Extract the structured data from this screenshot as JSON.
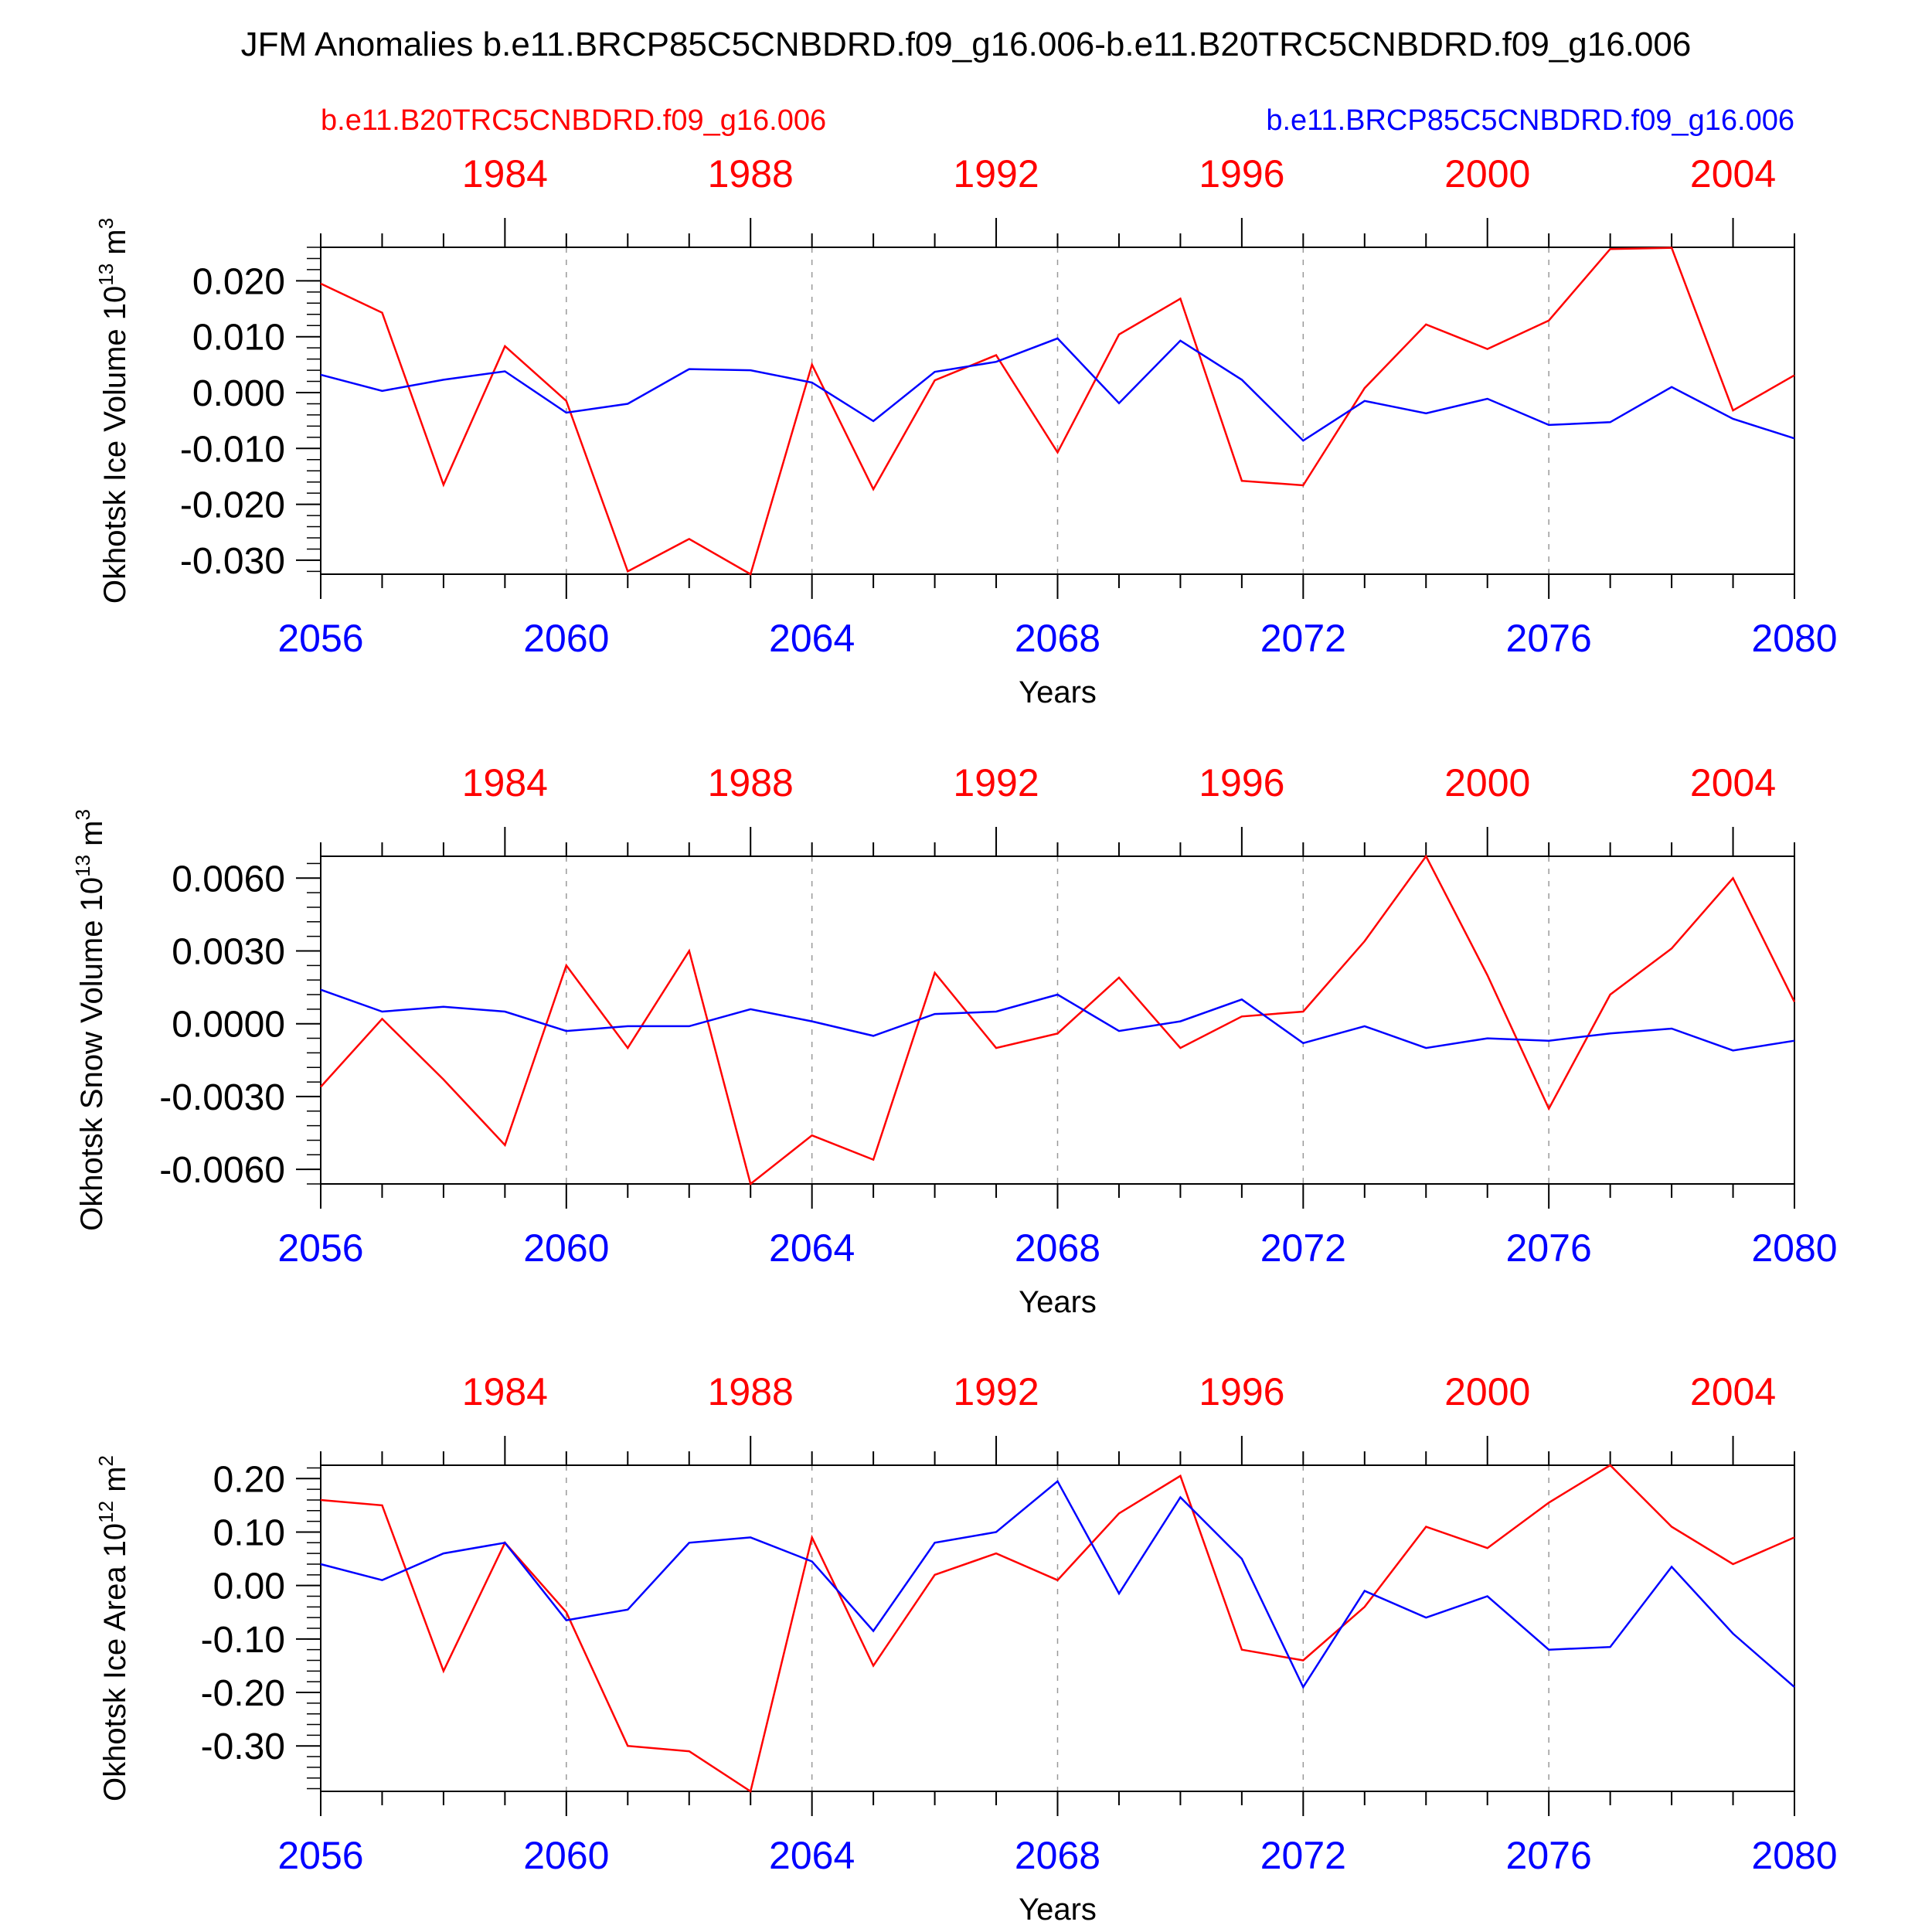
{
  "title": "JFM Anomalies b.e11.BRCP85C5CNBDRD.f09_g16.006-b.e11.B20TRC5CNBDRD.f09_g16.006",
  "legend": {
    "red_label": "b.e11.B20TRC5CNBDRD.f09_g16.006",
    "blue_label": "b.e11.BRCP85C5CNBDRD.f09_g16.006"
  },
  "colors": {
    "red": "#ff0000",
    "blue": "#0000ff",
    "axis": "#000000",
    "grid": "#999999"
  },
  "chart_data": [
    {
      "type": "line",
      "title": "",
      "ylabel_text": "Okhotsk Ice Volume 10",
      "ylabel_exp": "13",
      "ylabel_unit": "m",
      "ylabel_unit_exp": "3",
      "xlabel": "Years",
      "xlim": [
        2056,
        2080
      ],
      "ylim": [
        -0.0325,
        0.026
      ],
      "yticks": [
        0.02,
        0.01,
        0.0,
        -0.01,
        -0.02,
        -0.03
      ],
      "ytick_labels": [
        "0.020",
        "0.010",
        "0.000",
        "-0.010",
        "-0.020",
        "-0.030"
      ],
      "yminor_step": 0.002,
      "bottom_ticks": [
        2056,
        2060,
        2064,
        2068,
        2072,
        2076,
        2080
      ],
      "bottom_labels": [
        "2056",
        "2060",
        "2064",
        "2068",
        "2072",
        "2076",
        "2080"
      ],
      "top_tick_positions": [
        2059,
        2063,
        2067,
        2071,
        2075,
        2079
      ],
      "top_labels": [
        "1984",
        "1988",
        "1992",
        "1996",
        "2000",
        "2004"
      ],
      "x": [
        2056,
        2057,
        2058,
        2059,
        2060,
        2061,
        2062,
        2063,
        2064,
        2065,
        2066,
        2067,
        2068,
        2069,
        2070,
        2071,
        2072,
        2073,
        2074,
        2075,
        2076,
        2077,
        2078,
        2079,
        2080
      ],
      "series": [
        {
          "name": "b.e11.B20TRC5CNBDRD.f09_g16.006",
          "color": "#ff0000",
          "values": [
            0.0195,
            0.0143,
            -0.0165,
            0.0083,
            -0.0015,
            -0.032,
            -0.0262,
            -0.0325,
            0.005,
            -0.0173,
            0.0022,
            0.0067,
            -0.0107,
            0.0104,
            0.0168,
            -0.0158,
            -0.0166,
            0.0008,
            0.0122,
            0.0078,
            0.0129,
            0.0257,
            0.0259,
            -0.0032,
            0.0031
          ]
        },
        {
          "name": "b.e11.BRCP85C5CNBDRD.f09_g16.006",
          "color": "#0000ff",
          "values": [
            0.0032,
            0.0003,
            0.0023,
            0.0038,
            -0.0036,
            -0.002,
            0.0042,
            0.004,
            0.0018,
            -0.0051,
            0.0037,
            0.0055,
            0.0097,
            -0.0019,
            0.0093,
            0.0023,
            -0.0086,
            -0.0015,
            -0.0037,
            -0.0011,
            -0.0058,
            -0.0053,
            0.001,
            -0.0047,
            -0.0082
          ]
        }
      ]
    },
    {
      "type": "line",
      "title": "",
      "ylabel_text": "Okhotsk Snow Volume 10",
      "ylabel_exp": "13",
      "ylabel_unit": "m",
      "ylabel_unit_exp": "3",
      "xlabel": "Years",
      "xlim": [
        2056,
        2080
      ],
      "ylim": [
        -0.0066,
        0.0069
      ],
      "yticks": [
        0.006,
        0.003,
        0.0,
        -0.003,
        -0.006
      ],
      "ytick_labels": [
        "0.0060",
        "0.0030",
        "0.0000",
        "-0.0030",
        "-0.0060"
      ],
      "yminor_step": 0.0006,
      "bottom_ticks": [
        2056,
        2060,
        2064,
        2068,
        2072,
        2076,
        2080
      ],
      "bottom_labels": [
        "2056",
        "2060",
        "2064",
        "2068",
        "2072",
        "2076",
        "2080"
      ],
      "top_tick_positions": [
        2059,
        2063,
        2067,
        2071,
        2075,
        2079
      ],
      "top_labels": [
        "1984",
        "1988",
        "1992",
        "1996",
        "2000",
        "2004"
      ],
      "x": [
        2056,
        2057,
        2058,
        2059,
        2060,
        2061,
        2062,
        2063,
        2064,
        2065,
        2066,
        2067,
        2068,
        2069,
        2070,
        2071,
        2072,
        2073,
        2074,
        2075,
        2076,
        2077,
        2078,
        2079,
        2080
      ],
      "series": [
        {
          "name": "b.e11.B20TRC5CNBDRD.f09_g16.006",
          "color": "#ff0000",
          "values": [
            -0.0026,
            0.0002,
            -0.0023,
            -0.005,
            0.0024,
            -0.001,
            0.003,
            -0.0066,
            -0.0046,
            -0.0056,
            0.0021,
            -0.001,
            -0.0004,
            0.0019,
            -0.001,
            0.0003,
            0.0005,
            0.0034,
            0.0069,
            0.002,
            -0.0035,
            0.0012,
            0.0031,
            0.006,
            0.0009
          ]
        },
        {
          "name": "b.e11.BRCP85C5CNBDRD.f09_g16.006",
          "color": "#0000ff",
          "values": [
            0.0014,
            0.0005,
            0.0007,
            0.0005,
            -0.0003,
            -0.0001,
            -0.0001,
            0.0006,
            0.0001,
            -0.0005,
            0.0004,
            0.0005,
            0.0012,
            -0.0003,
            0.0001,
            0.001,
            -0.0008,
            -0.0001,
            -0.001,
            -0.0006,
            -0.0007,
            -0.0004,
            -0.0002,
            -0.0011,
            -0.0007
          ]
        }
      ]
    },
    {
      "type": "line",
      "title": "",
      "ylabel_text": "Okhotsk Ice Area 10",
      "ylabel_exp": "12",
      "ylabel_unit": "m",
      "ylabel_unit_exp": "2",
      "xlabel": "Years",
      "xlim": [
        2056,
        2080
      ],
      "ylim": [
        -0.385,
        0.225
      ],
      "yticks": [
        0.2,
        0.1,
        0.0,
        -0.1,
        -0.2,
        -0.3
      ],
      "ytick_labels": [
        "0.20",
        "0.10",
        "0.00",
        "-0.10",
        "-0.20",
        "-0.30"
      ],
      "yminor_step": 0.02,
      "bottom_ticks": [
        2056,
        2060,
        2064,
        2068,
        2072,
        2076,
        2080
      ],
      "bottom_labels": [
        "2056",
        "2060",
        "2064",
        "2068",
        "2072",
        "2076",
        "2080"
      ],
      "top_tick_positions": [
        2059,
        2063,
        2067,
        2071,
        2075,
        2079
      ],
      "top_labels": [
        "1984",
        "1988",
        "1992",
        "1996",
        "2000",
        "2004"
      ],
      "x": [
        2056,
        2057,
        2058,
        2059,
        2060,
        2061,
        2062,
        2063,
        2064,
        2065,
        2066,
        2067,
        2068,
        2069,
        2070,
        2071,
        2072,
        2073,
        2074,
        2075,
        2076,
        2077,
        2078,
        2079,
        2080
      ],
      "series": [
        {
          "name": "b.e11.B20TRC5CNBDRD.f09_g16.006",
          "color": "#ff0000",
          "values": [
            0.16,
            0.15,
            -0.16,
            0.08,
            -0.05,
            -0.3,
            -0.31,
            -0.385,
            0.09,
            -0.15,
            0.02,
            0.06,
            0.01,
            0.135,
            0.205,
            -0.12,
            -0.14,
            -0.04,
            0.11,
            0.07,
            0.155,
            0.225,
            0.11,
            0.04,
            0.09
          ]
        },
        {
          "name": "b.e11.BRCP85C5CNBDRD.f09_g16.006",
          "color": "#0000ff",
          "values": [
            0.04,
            0.01,
            0.06,
            0.08,
            -0.065,
            -0.045,
            0.08,
            0.09,
            0.045,
            -0.085,
            0.08,
            0.1,
            0.195,
            -0.015,
            0.165,
            0.05,
            -0.19,
            -0.01,
            -0.06,
            -0.02,
            -0.12,
            -0.115,
            0.035,
            -0.09,
            -0.19
          ]
        }
      ]
    }
  ]
}
